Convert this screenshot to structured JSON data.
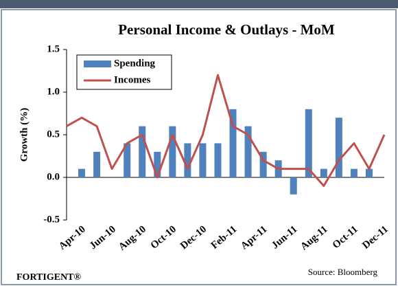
{
  "chart_data": {
    "type": "bar_line",
    "title": "Personal Income & Outlays - MoM",
    "y_label": "Growth (%)",
    "footer": "FORTIGENT®",
    "source": "Source: Bloomberg",
    "categories": [
      null,
      "Apr-10",
      null,
      "Jun-10",
      null,
      "Aug-10",
      null,
      "Oct-10",
      null,
      "Dec-10",
      null,
      "Feb-11",
      null,
      "Apr-11",
      null,
      "Jun-11",
      null,
      "Aug-11",
      null,
      "Oct-11",
      null,
      "Dec-11"
    ],
    "series": [
      {
        "name": "Spending",
        "type": "bar",
        "color": "#4f81bd",
        "values": [
          null,
          0.1,
          0.3,
          0,
          0.4,
          0.6,
          0.3,
          0.6,
          0.4,
          0.4,
          0.4,
          0.8,
          0.6,
          0.3,
          0.2,
          -0.2,
          0.8,
          0.1,
          0.7,
          0.1,
          0.1,
          null
        ]
      },
      {
        "name": "Incomes",
        "type": "line",
        "color": "#c0504d",
        "values": [
          0.6,
          0.7,
          0.6,
          0.1,
          0.4,
          0.5,
          0.0,
          0.5,
          0.1,
          0.5,
          1.2,
          0.6,
          0.5,
          0.2,
          0.1,
          0.1,
          0.1,
          -0.1,
          0.2,
          0.4,
          0.1,
          0.5
        ]
      }
    ],
    "ylim": [
      -0.5,
      1.5
    ],
    "yticks": [
      -0.5,
      {
        "value": 0,
        "label": "0.0"
      },
      0.5,
      {
        "value": 1,
        "label": "1.0"
      },
      1.5
    ],
    "legend": "upper left"
  }
}
